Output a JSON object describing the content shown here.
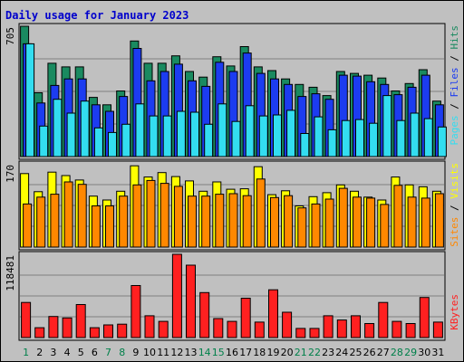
{
  "title": "Daily usage for January 2023",
  "chart_data": [
    {
      "type": "bar",
      "panel": "top",
      "categories": [
        "1",
        "2",
        "3",
        "4",
        "5",
        "6",
        "7",
        "8",
        "9",
        "10",
        "11",
        "12",
        "13",
        "14",
        "15",
        "16",
        "17",
        "18",
        "19",
        "20",
        "21",
        "22",
        "23",
        "24",
        "25",
        "26",
        "27",
        "28",
        "29",
        "30",
        "31"
      ],
      "weekend_days": [
        "1",
        "7",
        "8",
        "14",
        "15",
        "21",
        "22",
        "28",
        "29"
      ],
      "max_label": "705",
      "ylim": [
        0,
        705
      ],
      "series": [
        {
          "name": "Hits",
          "color": "#1a8a60",
          "values": [
            705,
            345,
            505,
            485,
            485,
            320,
            280,
            355,
            625,
            505,
            505,
            545,
            460,
            430,
            540,
            490,
            595,
            485,
            465,
            420,
            390,
            375,
            330,
            460,
            450,
            440,
            425,
            355,
            395,
            470,
            300
          ]
        },
        {
          "name": "Files",
          "color": "#1c3cf0",
          "values": [
            610,
            290,
            385,
            420,
            420,
            280,
            245,
            325,
            585,
            410,
            460,
            500,
            410,
            380,
            510,
            460,
            560,
            450,
            420,
            390,
            325,
            340,
            310,
            440,
            435,
            405,
            390,
            335,
            375,
            440,
            280
          ]
        },
        {
          "name": "Pages",
          "color": "#33ddf0",
          "values": [
            610,
            165,
            310,
            235,
            300,
            155,
            130,
            175,
            285,
            220,
            220,
            245,
            240,
            175,
            285,
            190,
            275,
            220,
            225,
            250,
            125,
            215,
            145,
            195,
            200,
            180,
            330,
            195,
            235,
            205,
            160
          ]
        }
      ]
    },
    {
      "type": "bar",
      "panel": "middle",
      "categories": [
        "1",
        "2",
        "3",
        "4",
        "5",
        "6",
        "7",
        "8",
        "9",
        "10",
        "11",
        "12",
        "13",
        "14",
        "15",
        "16",
        "17",
        "18",
        "19",
        "20",
        "21",
        "22",
        "23",
        "24",
        "25",
        "26",
        "27",
        "28",
        "29",
        "30",
        "31"
      ],
      "max_label": "170",
      "ylim": [
        0,
        170
      ],
      "series": [
        {
          "name": "Visits",
          "color": "#ffff00",
          "values": [
            150,
            113,
            153,
            146,
            137,
            104,
            96,
            114,
            166,
            143,
            152,
            144,
            135,
            114,
            133,
            118,
            119,
            164,
            107,
            115,
            84,
            103,
            111,
            127,
            114,
            102,
            96,
            143,
            127,
            123,
            114
          ]
        },
        {
          "name": "Sites",
          "color": "#ff8800",
          "values": [
            88,
            102,
            108,
            133,
            128,
            84,
            84,
            104,
            127,
            136,
            130,
            124,
            104,
            104,
            108,
            109,
            105,
            139,
            101,
            105,
            80,
            88,
            98,
            120,
            102,
            100,
            87,
            126,
            102,
            100,
            109
          ]
        }
      ]
    },
    {
      "type": "bar",
      "panel": "bottom",
      "categories": [
        "1",
        "2",
        "3",
        "4",
        "5",
        "6",
        "7",
        "8",
        "9",
        "10",
        "11",
        "12",
        "13",
        "14",
        "15",
        "16",
        "17",
        "18",
        "19",
        "20",
        "21",
        "22",
        "23",
        "24",
        "25",
        "26",
        "27",
        "28",
        "29",
        "30",
        "31"
      ],
      "max_label": "118481",
      "ylim": [
        0,
        118481
      ],
      "series": [
        {
          "name": "KBytes",
          "color": "#ff2020",
          "values": [
            50000,
            14000,
            30000,
            28000,
            47000,
            14000,
            18000,
            19000,
            74000,
            31000,
            23000,
            118481,
            103000,
            64000,
            27000,
            23000,
            56000,
            22000,
            68000,
            36000,
            13000,
            13000,
            31000,
            25000,
            31000,
            20000,
            50000,
            23000,
            20000,
            57000,
            22000
          ]
        }
      ]
    }
  ],
  "legend_top": [
    {
      "text": "Pages",
      "color": "#33ddf0"
    },
    {
      "text": " / ",
      "color": "#000000"
    },
    {
      "text": "Files",
      "color": "#1c3cf0"
    },
    {
      "text": " / ",
      "color": "#000000"
    },
    {
      "text": "Hits",
      "color": "#1a8a60"
    }
  ],
  "legend_middle": [
    {
      "text": "Sites",
      "color": "#ff8800"
    },
    {
      "text": " / ",
      "color": "#000000"
    },
    {
      "text": "Visits",
      "color": "#ffff00"
    }
  ],
  "legend_bottom": [
    {
      "text": "KBytes",
      "color": "#ff2020"
    }
  ],
  "colors": {
    "background": "#c0c0c0",
    "title": "#0000cc",
    "weekday_label": "#000000",
    "weekend_label": "#00804a"
  }
}
